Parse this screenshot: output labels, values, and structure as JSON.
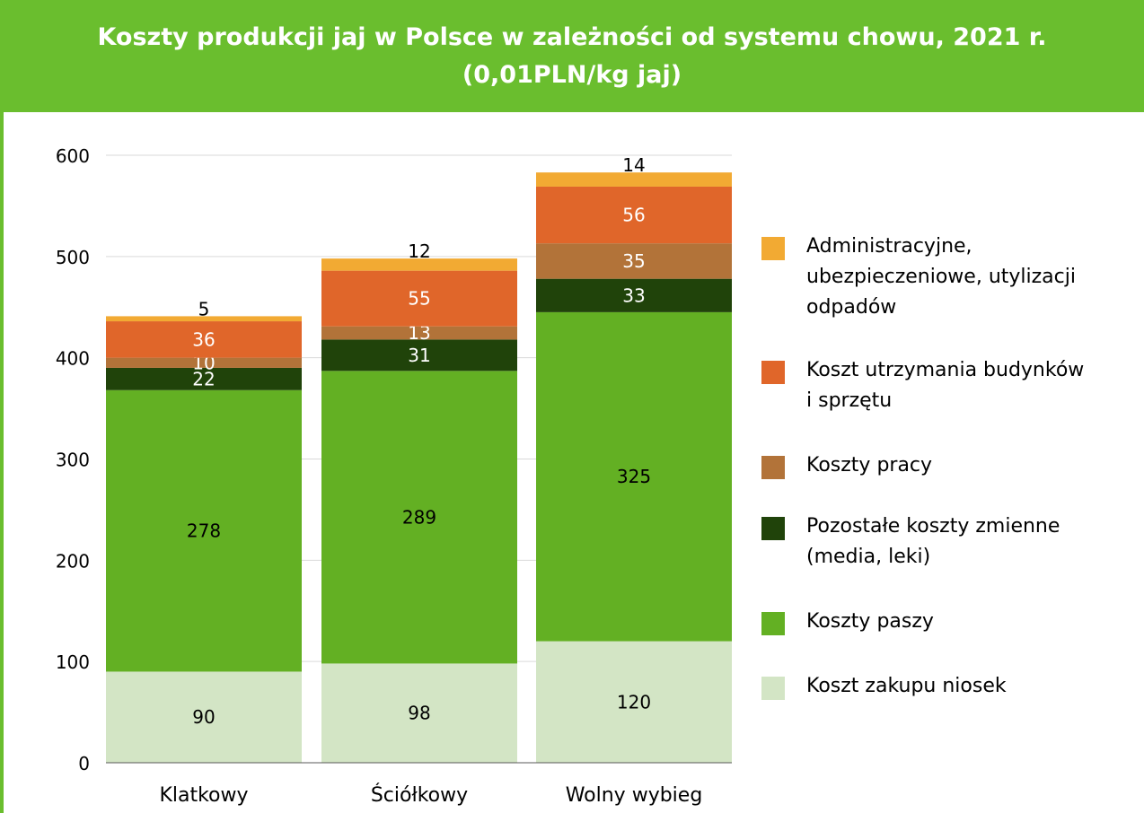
{
  "title": {
    "line1": "Koszty produkcji jaj w Polsce w zależności od systemu chowu, 2021 r.",
    "line2": "(0,01PLN/kg jaj)"
  },
  "colors": {
    "brand_green": "#6abe2e",
    "grid": "#d9d9d9"
  },
  "chart_data": {
    "type": "bar",
    "stacked": true,
    "title": "Koszty produkcji jaj w Polsce w zależności od systemu chowu, 2021 r. (0,01PLN/kg jaj)",
    "categories": [
      "Klatkowy",
      "Ściółkowy",
      "Wolny wybieg"
    ],
    "ylim": [
      0,
      600
    ],
    "yticks": [
      0,
      100,
      200,
      300,
      400,
      500,
      600
    ],
    "grid": true,
    "legend_position": "right",
    "series": [
      {
        "name": "Koszt zakupu niosek",
        "color": "#d3e5c5",
        "label_color": "#000000",
        "values": [
          90,
          98,
          120
        ]
      },
      {
        "name": "Koszty paszy",
        "color": "#63b023",
        "label_color": "#000000",
        "values": [
          278,
          289,
          325
        ]
      },
      {
        "name": "Pozostałe koszty zmienne (media, leki)",
        "color": "#20430a",
        "label_color": "#ffffff",
        "values": [
          22,
          31,
          33
        ]
      },
      {
        "name": "Koszty pracy",
        "color": "#b27339",
        "label_color": "#ffffff",
        "values": [
          10,
          13,
          35
        ]
      },
      {
        "name": "Koszt utrzymania budynków i sprzętu",
        "color": "#e0662a",
        "label_color": "#ffffff",
        "values": [
          36,
          55,
          56
        ]
      },
      {
        "name": "Administracyjne, ubezpieczeniowe, utylizacji odpadów",
        "color": "#f2aa33",
        "label_color": "#000000",
        "values": [
          5,
          12,
          14
        ]
      }
    ]
  },
  "legend": {
    "items": [
      {
        "lines": [
          "Administracyjne,",
          "ubezpieczeniowe, utylizacji",
          "odpadów"
        ],
        "color": "#f2aa33"
      },
      {
        "lines": [
          "Koszt utrzymania budynków",
          "i sprzętu"
        ],
        "color": "#e0662a"
      },
      {
        "lines": [
          "Koszty pracy"
        ],
        "color": "#b27339"
      },
      {
        "lines": [
          "Pozostałe koszty zmienne",
          "(media, leki)"
        ],
        "color": "#20430a"
      },
      {
        "lines": [
          "Koszty paszy"
        ],
        "color": "#63b023"
      },
      {
        "lines": [
          "Koszt zakupu niosek"
        ],
        "color": "#d3e5c5"
      }
    ]
  }
}
